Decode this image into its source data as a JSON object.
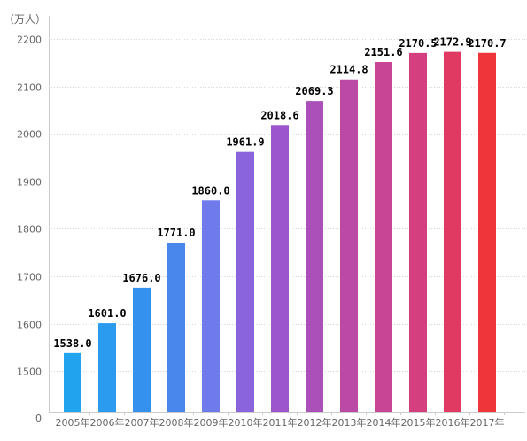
{
  "chart_data": {
    "type": "bar",
    "unit": "（万人）",
    "categories": [
      "2005年",
      "2006年",
      "2007年",
      "2008年",
      "2009年",
      "2010年",
      "2011年",
      "2012年",
      "2013年",
      "2014年",
      "2015年",
      "2016年",
      "2017年"
    ],
    "values": [
      1538.0,
      1601.0,
      1676.0,
      1771.0,
      1860.0,
      1961.9,
      2018.6,
      2069.3,
      2114.8,
      2151.6,
      2170.5,
      2172.9,
      2170.7
    ],
    "data_labels": [
      "1538.0",
      "1601.0",
      "1676.0",
      "1771.0",
      "1860.0",
      "1961.9",
      "2018.6",
      "2069.3",
      "2114.8",
      "2151.6",
      "2170.5",
      "2172.9",
      "2170.7"
    ],
    "ylim": [
      1450,
      2230
    ],
    "y_ticks": [
      1500,
      1600,
      1700,
      1800,
      1900,
      2000,
      2100,
      2200
    ],
    "y_tick_labels": [
      "1500",
      "1600",
      "1700",
      "1800",
      "1900",
      "2000",
      "2100",
      "2200"
    ],
    "y_axis_break_label": "0",
    "grid": true,
    "bar_colors": [
      "#22a3ee",
      "#2a9bee",
      "#3591ee",
      "#4a87ec",
      "#6f7bea",
      "#8a64dc",
      "#9c55cc",
      "#ab4fb9",
      "#ba4aa6",
      "#c74594",
      "#d4407f",
      "#e13a62",
      "#f0353a"
    ]
  }
}
